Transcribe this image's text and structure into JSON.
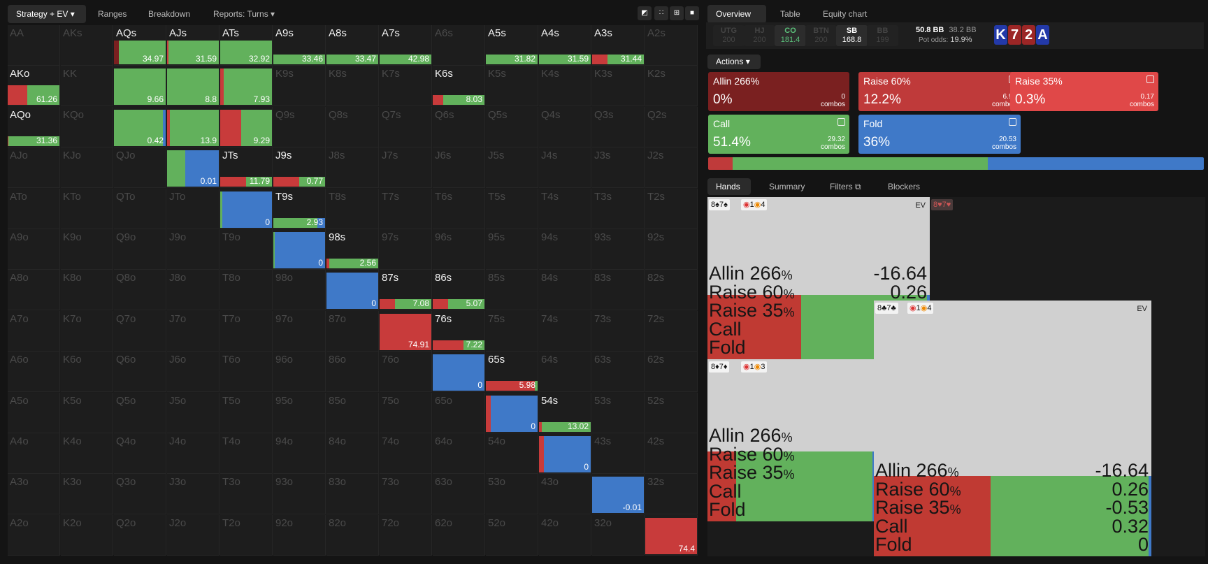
{
  "toolbar": {
    "tabs": [
      "Strategy + EV",
      "Ranges",
      "Breakdown",
      "Reports: Turns"
    ]
  },
  "ranks": [
    "A",
    "K",
    "Q",
    "J",
    "T",
    "9",
    "8",
    "7",
    "6",
    "5",
    "4",
    "3",
    "2"
  ],
  "matrix": [
    {
      "r": 0,
      "c": 2,
      "ev": "34.97",
      "s": [
        0.1,
        0,
        0,
        0.9,
        0
      ]
    },
    {
      "r": 0,
      "c": 3,
      "ev": "31.59",
      "s": [
        0,
        0,
        0.03,
        0.97,
        0
      ]
    },
    {
      "r": 0,
      "c": 4,
      "ev": "32.92",
      "s": [
        0,
        0,
        0,
        1,
        0
      ]
    },
    {
      "r": 0,
      "c": 5,
      "ev": "33.46",
      "s": [
        0,
        0,
        0,
        1,
        0
      ]
    },
    {
      "r": 0,
      "c": 6,
      "ev": "33.47",
      "s": [
        0,
        0,
        0,
        1,
        0
      ]
    },
    {
      "r": 0,
      "c": 7,
      "ev": "42.98",
      "s": [
        0,
        0,
        0,
        1,
        0
      ]
    },
    {
      "r": 0,
      "c": 9,
      "ev": "31.82",
      "s": [
        0,
        0,
        0,
        1,
        0
      ]
    },
    {
      "r": 0,
      "c": 10,
      "ev": "31.59",
      "s": [
        0,
        0,
        0,
        1,
        0
      ]
    },
    {
      "r": 0,
      "c": 11,
      "ev": "31.44",
      "s": [
        0,
        0,
        0.3,
        0.7,
        0
      ]
    },
    {
      "r": 1,
      "c": 0,
      "ev": "61.26",
      "s": [
        0,
        0,
        0.38,
        0.62,
        0
      ]
    },
    {
      "r": 1,
      "c": 2,
      "ev": "9.66",
      "s": [
        0,
        0,
        0,
        1,
        0
      ]
    },
    {
      "r": 1,
      "c": 3,
      "ev": "8.8",
      "s": [
        0,
        0,
        0,
        1,
        0
      ]
    },
    {
      "r": 1,
      "c": 4,
      "ev": "7.93",
      "s": [
        0,
        0,
        0.07,
        0.93,
        0
      ]
    },
    {
      "r": 1,
      "c": 8,
      "ev": "8.03",
      "s": [
        0,
        0,
        0.2,
        0.8,
        0
      ]
    },
    {
      "r": 2,
      "c": 0,
      "ev": "31.36",
      "s": [
        0,
        0,
        0.02,
        0.98,
        0
      ]
    },
    {
      "r": 2,
      "c": 2,
      "ev": "0.42",
      "s": [
        0,
        0,
        0,
        0.95,
        0.05
      ]
    },
    {
      "r": 2,
      "c": 3,
      "ev": "13.9",
      "s": [
        0,
        0,
        0.06,
        0.94,
        0
      ]
    },
    {
      "r": 2,
      "c": 4,
      "ev": "9.29",
      "s": [
        0,
        0,
        0.4,
        0.6,
        0
      ]
    },
    {
      "r": 3,
      "c": 3,
      "ev": "0.01",
      "s": [
        0,
        0,
        0,
        0.35,
        0.65
      ]
    },
    {
      "r": 3,
      "c": 4,
      "ev": "11.79",
      "s": [
        0,
        0,
        0.5,
        0.5,
        0
      ]
    },
    {
      "r": 3,
      "c": 5,
      "ev": "0.77",
      "s": [
        0,
        0,
        0.5,
        0.5,
        0
      ]
    },
    {
      "r": 4,
      "c": 4,
      "ev": "0",
      "s": [
        0,
        0,
        0,
        0.04,
        0.96
      ]
    },
    {
      "r": 4,
      "c": 5,
      "ev": "2.93",
      "s": [
        0,
        0,
        0,
        0.85,
        0.15
      ]
    },
    {
      "r": 5,
      "c": 5,
      "ev": "0",
      "s": [
        0,
        0,
        0,
        0.03,
        0.97
      ]
    },
    {
      "r": 5,
      "c": 6,
      "ev": "2.56",
      "s": [
        0,
        0,
        0.05,
        0.95,
        0
      ]
    },
    {
      "r": 6,
      "c": 6,
      "ev": "0",
      "s": [
        0,
        0,
        0,
        0,
        1
      ]
    },
    {
      "r": 6,
      "c": 7,
      "ev": "7.08",
      "s": [
        0,
        0,
        0.3,
        0.7,
        0
      ]
    },
    {
      "r": 6,
      "c": 8,
      "ev": "5.07",
      "s": [
        0,
        0,
        0.3,
        0.7,
        0
      ]
    },
    {
      "r": 7,
      "c": 7,
      "ev": "74.91",
      "s": [
        0,
        0,
        1,
        0,
        0
      ]
    },
    {
      "r": 7,
      "c": 8,
      "ev": "7.22",
      "s": [
        0,
        0,
        0.6,
        0.4,
        0
      ]
    },
    {
      "r": 8,
      "c": 8,
      "ev": "0",
      "s": [
        0,
        0,
        0,
        0,
        1
      ]
    },
    {
      "r": 8,
      "c": 9,
      "ev": "5.98",
      "s": [
        0,
        0,
        0.95,
        0.05,
        0
      ]
    },
    {
      "r": 9,
      "c": 9,
      "ev": "0",
      "s": [
        0,
        0,
        0.1,
        0,
        0.9
      ]
    },
    {
      "r": 9,
      "c": 10,
      "ev": "13.02",
      "s": [
        0,
        0,
        0.05,
        0.95,
        0
      ]
    },
    {
      "r": 10,
      "c": 10,
      "ev": "0",
      "s": [
        0,
        0,
        0.1,
        0,
        0.9
      ]
    },
    {
      "r": 11,
      "c": 11,
      "ev": "-0.01",
      "s": [
        0,
        0,
        0,
        0,
        1
      ]
    },
    {
      "r": 12,
      "c": 12,
      "ev": "74.4",
      "s": [
        0,
        0,
        1,
        0,
        0
      ]
    }
  ],
  "right_tabs": [
    "Overview",
    "Table",
    "Equity chart"
  ],
  "seats": [
    {
      "n": "UTG",
      "v": "200"
    },
    {
      "n": "HJ",
      "v": "200"
    },
    {
      "n": "CO",
      "v": "181.4"
    },
    {
      "n": "BTN",
      "v": "200"
    },
    {
      "n": "SB",
      "v": "168.8"
    },
    {
      "n": "BB",
      "v": "199"
    }
  ],
  "pot": {
    "main": "50.8 BB",
    "side": "38.2 BB",
    "odds_label": "Pot odds:",
    "odds": "19.9%"
  },
  "board": [
    {
      "r": "K",
      "col": "#2339a8"
    },
    {
      "r": "7",
      "col": "#9c2626"
    },
    {
      "r": "2",
      "col": "#9c2626"
    },
    {
      "r": "A",
      "col": "#2339a8"
    }
  ],
  "actions_menu": "Actions",
  "actions": [
    {
      "name": "Allin 266%",
      "pct": "0%",
      "combos": "0",
      "col": "#7a2020"
    },
    {
      "name": "Raise 60%",
      "pct": "12.2%",
      "combos": "6.97",
      "col": "#bf3a3a"
    },
    {
      "name": "Raise 35%",
      "pct": "0.3%",
      "combos": "0.17",
      "col": "#e04848"
    },
    {
      "name": "Call",
      "pct": "51.4%",
      "combos": "29.32",
      "col": "#62b15c"
    },
    {
      "name": "Fold",
      "pct": "36%",
      "combos": "20.53",
      "col": "#3f79c8"
    }
  ],
  "combos_label": "combos",
  "bottom_tabs": [
    "Hands",
    "Summary",
    "Filters",
    "Blockers"
  ],
  "hand_cards": [
    {
      "hand": "8♠7♠",
      "b1": "1",
      "b2": "4",
      "ev_label": "EV",
      "vals": [
        "-16.64",
        "0.26",
        "-0.53",
        "",
        ""
      ]
    },
    {
      "hand": "8♥7♥"
    },
    {
      "hand": "8♣7♣",
      "b1": "1",
      "b2": "4",
      "ev_label": "EV",
      "vals": [
        "-16.64",
        "0.26",
        "-0.53",
        "0.32",
        "0"
      ]
    },
    {
      "hand": "8♦7♦",
      "b1": "1",
      "b2": "3",
      "ev_label": "",
      "vals": [
        "",
        "",
        "",
        "",
        ""
      ]
    }
  ],
  "hand_actions": [
    "Allin 266",
    "Raise 60",
    "Raise 35",
    "Call",
    "Fold"
  ],
  "pct_sign": "%"
}
